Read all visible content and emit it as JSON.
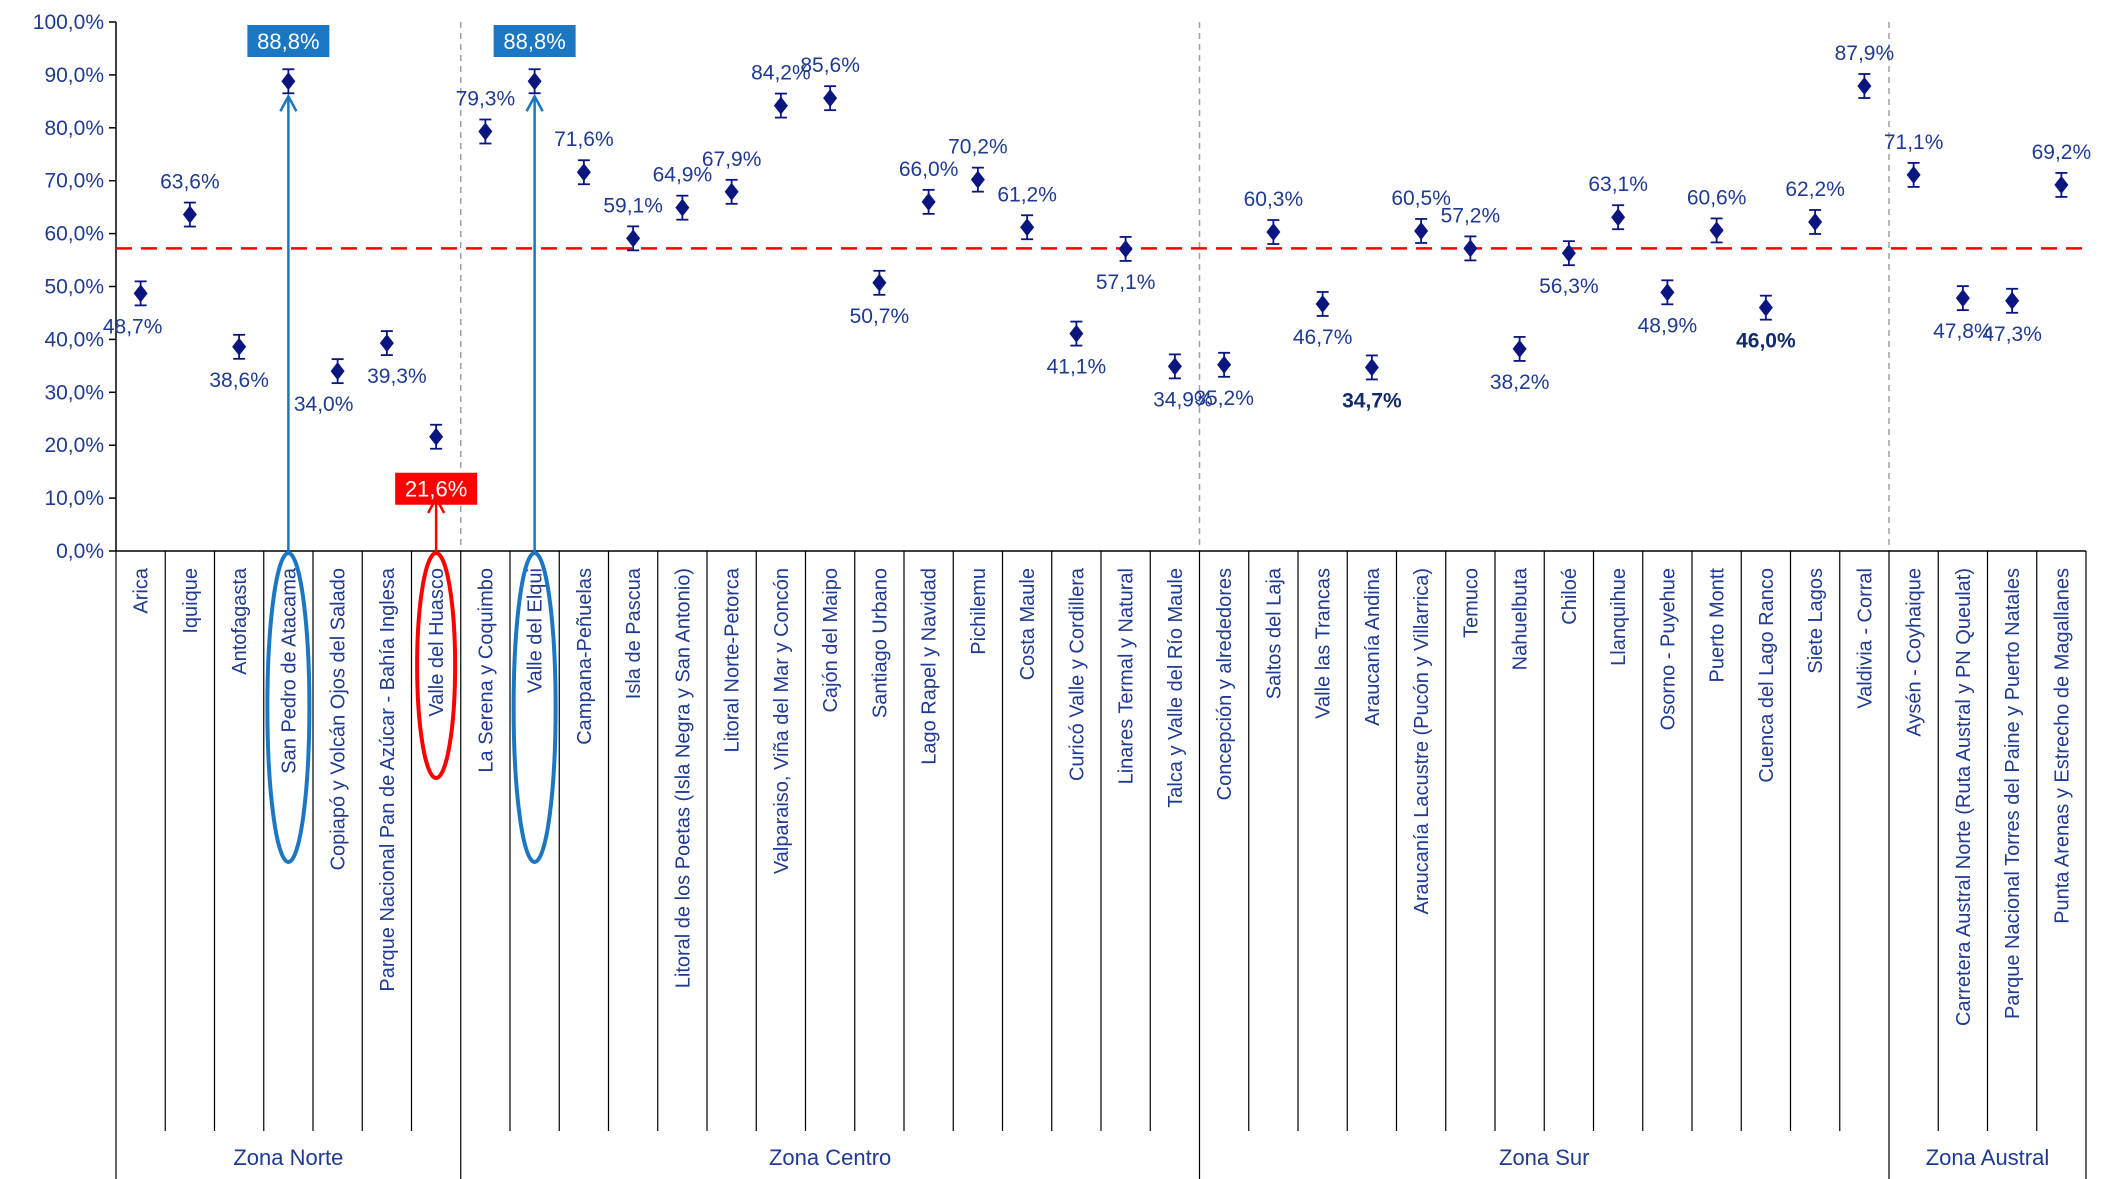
{
  "chart_data": {
    "type": "scatter",
    "y_ticks": [
      "0,0%",
      "10,0%",
      "20,0%",
      "30,0%",
      "40,0%",
      "50,0%",
      "60,0%",
      "70,0%",
      "80,0%",
      "90,0%",
      "100,0%"
    ],
    "ylim": [
      0,
      100
    ],
    "grid": false,
    "error_bars": true,
    "average_line": 57.2,
    "categories": [
      "Arica",
      "Iquique",
      "Antofagasta",
      "San Pedro de Atacama",
      "Copiapó y Volcán Ojos del Salado",
      "Parque Nacional Pan de Azúcar - Bahía Inglesa",
      "Valle del Huasco",
      "La Serena y Coquimbo",
      "Valle del Elqui",
      "Campana-Peñuelas",
      "Isla de Pascua",
      "Litoral de los Poetas (Isla Negra y San Antonio)",
      "Litoral Norte-Petorca",
      "Valparaiso, Viña del Mar y Concón",
      "Cajón del Maipo",
      "Santiago Urbano",
      "Lago Rapel y Navidad",
      "Pichilemu",
      "Costa Maule",
      "Curicó Valle y Cordillera",
      "Linares Termal y Natural",
      "Talca y Valle del Río Maule",
      "Concepción y alrededores",
      "Saltos del Laja",
      "Valle las Trancas",
      "Araucanía Andina",
      "Araucanía Lacustre (Pucón y Villarrica)",
      "Temuco",
      "Nahuelbuta",
      "Chiloé",
      "Llanquihue",
      "Osorno - Puyehue",
      "Puerto Montt",
      "Cuenca del Lago Ranco",
      "Siete Lagos",
      "Valdivia - Corral",
      "Aysén - Coyhaique",
      "Carretera Austral Norte (Ruta Austral y PN Queulat)",
      "Parque Nacional Torres del Paine y Puerto Natales",
      "Punta Arenas y Estrecho de Magallanes"
    ],
    "values": [
      48.7,
      63.6,
      38.6,
      88.8,
      34.0,
      39.3,
      21.6,
      79.3,
      88.8,
      71.6,
      59.1,
      64.9,
      67.9,
      84.2,
      85.6,
      50.7,
      66.0,
      70.2,
      61.2,
      41.1,
      57.1,
      34.9,
      35.2,
      60.3,
      46.7,
      34.7,
      60.5,
      57.2,
      38.2,
      56.3,
      63.1,
      48.9,
      60.6,
      46.0,
      62.2,
      87.9,
      71.1,
      47.8,
      47.3,
      69.2
    ],
    "value_labels": [
      "48,7%",
      "63,6%",
      "38,6%",
      "88,8%",
      "34,0%",
      "39,3%",
      "21,6%",
      "79,3%",
      "88,8%",
      "71,6%",
      "59,1%",
      "64,9%",
      "67,9%",
      "84,2%",
      "85,6%",
      "50,7%",
      "66,0%",
      "70,2%",
      "61,2%",
      "41,1%",
      "57,1%",
      "34,9%",
      "35,2%",
      "60,3%",
      "46,7%",
      "34,7%",
      "60,5%",
      "57,2%",
      "38,2%",
      "56,3%",
      "63,1%",
      "48,9%",
      "60,6%",
      "46,0%",
      "62,2%",
      "87,9%",
      "71,1%",
      "47,8%",
      "47,3%",
      "69,2%"
    ],
    "zones": [
      {
        "name": "Zona Norte",
        "first": 0,
        "last": 6
      },
      {
        "name": "Zona Centro",
        "first": 7,
        "last": 21
      },
      {
        "name": "Zona Sur",
        "first": 22,
        "last": 35
      },
      {
        "name": "Zona Austral",
        "first": 36,
        "last": 39
      }
    ],
    "highlights": [
      {
        "index": 3,
        "text": "88,8%",
        "color": "#1c77c3",
        "ellipse_color": "#1c77c3"
      },
      {
        "index": 8,
        "text": "88,8%",
        "color": "#1c77c3",
        "ellipse_color": "#1c77c3"
      },
      {
        "index": 6,
        "text": "21,6%",
        "color": "#ff0000",
        "ellipse_color": "#ff0000"
      }
    ],
    "colors": {
      "marker": "#0a1580",
      "value_label": "#1f3a93",
      "average_line": "#ff0000",
      "zone_divider": "#a0a0a0",
      "axis": "#000000"
    }
  }
}
